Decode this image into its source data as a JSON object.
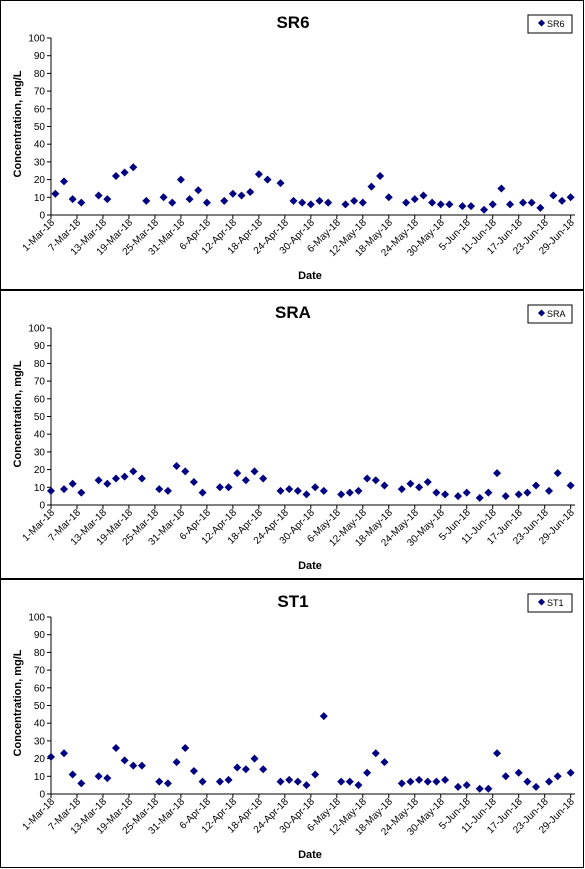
{
  "chart_data": [
    {
      "type": "scatter",
      "title": "SR6",
      "xlabel": "Date",
      "ylabel": "Concentration, mg/L",
      "ylim": [
        0,
        100
      ],
      "y_ticks": [
        "0",
        "10",
        "20",
        "30",
        "40",
        "50",
        "60",
        "70",
        "80",
        "90",
        "100"
      ],
      "x_ticks": [
        "1-Mar-18",
        "7-Mar-18",
        "13-Mar-18",
        "19-Mar-18",
        "25-Mar-18",
        "31-Mar-18",
        "6-Apr-18",
        "12-Apr-18",
        "18-Apr-18",
        "24-Apr-18",
        "30-Apr-18",
        "6-May-18",
        "12-May-18",
        "18-May-18",
        "24-May-18",
        "30-May-18",
        "5-Jun-18",
        "11-Jun-18",
        "17-Jun-18",
        "23-Jun-18",
        "29-Jun-18"
      ],
      "legend": "top-right",
      "marker_color": "#000080",
      "series": [
        {
          "name": "SR6",
          "points": [
            [
              "2018-03-02",
              12
            ],
            [
              "2018-03-04",
              19
            ],
            [
              "2018-03-06",
              9
            ],
            [
              "2018-03-08",
              7
            ],
            [
              "2018-03-12",
              11
            ],
            [
              "2018-03-14",
              9
            ],
            [
              "2018-03-16",
              22
            ],
            [
              "2018-03-18",
              24
            ],
            [
              "2018-03-20",
              27
            ],
            [
              "2018-03-23",
              8
            ],
            [
              "2018-03-27",
              10
            ],
            [
              "2018-03-29",
              7
            ],
            [
              "2018-03-31",
              20
            ],
            [
              "2018-04-02",
              9
            ],
            [
              "2018-04-04",
              14
            ],
            [
              "2018-04-06",
              7
            ],
            [
              "2018-04-10",
              8
            ],
            [
              "2018-04-12",
              12
            ],
            [
              "2018-04-14",
              11
            ],
            [
              "2018-04-16",
              13
            ],
            [
              "2018-04-18",
              23
            ],
            [
              "2018-04-20",
              20
            ],
            [
              "2018-04-23",
              18
            ],
            [
              "2018-04-26",
              8
            ],
            [
              "2018-04-28",
              7
            ],
            [
              "2018-04-30",
              6
            ],
            [
              "2018-05-02",
              8
            ],
            [
              "2018-05-04",
              7
            ],
            [
              "2018-05-08",
              6
            ],
            [
              "2018-05-10",
              8
            ],
            [
              "2018-05-12",
              7
            ],
            [
              "2018-05-14",
              16
            ],
            [
              "2018-05-16",
              22
            ],
            [
              "2018-05-18",
              10
            ],
            [
              "2018-05-22",
              7
            ],
            [
              "2018-05-24",
              9
            ],
            [
              "2018-05-26",
              11
            ],
            [
              "2018-05-28",
              7
            ],
            [
              "2018-05-30",
              6
            ],
            [
              "2018-06-01",
              6
            ],
            [
              "2018-06-04",
              5
            ],
            [
              "2018-06-06",
              5
            ],
            [
              "2018-06-09",
              3
            ],
            [
              "2018-06-11",
              6
            ],
            [
              "2018-06-13",
              15
            ],
            [
              "2018-06-15",
              6
            ],
            [
              "2018-06-18",
              7
            ],
            [
              "2018-06-20",
              7
            ],
            [
              "2018-06-22",
              4
            ],
            [
              "2018-06-25",
              11
            ],
            [
              "2018-06-27",
              8
            ],
            [
              "2018-06-29",
              10
            ]
          ]
        }
      ]
    },
    {
      "type": "scatter",
      "title": "SRA",
      "xlabel": "Date",
      "ylabel": "Concentration, mg/L",
      "ylim": [
        0,
        100
      ],
      "y_ticks": [
        "0",
        "10",
        "20",
        "30",
        "40",
        "50",
        "60",
        "70",
        "80",
        "90",
        "100"
      ],
      "x_ticks": [
        "1-Mar-18",
        "7-Mar-18",
        "13-Mar-18",
        "19-Mar-18",
        "25-Mar-18",
        "31-Mar-18",
        "6-Apr-18",
        "12-Apr-18",
        "18-Apr-18",
        "24-Apr-18",
        "30-Apr-18",
        "6-May-18",
        "12-May-18",
        "18-May-18",
        "24-May-18",
        "30-May-18",
        "5-Jun-18",
        "11-Jun-18",
        "17-Jun-18",
        "23-Jun-18",
        "29-Jun-18"
      ],
      "legend": "top-right",
      "marker_color": "#000080",
      "series": [
        {
          "name": "SRA",
          "points": [
            [
              "2018-03-01",
              8
            ],
            [
              "2018-03-04",
              9
            ],
            [
              "2018-03-06",
              12
            ],
            [
              "2018-03-08",
              7
            ],
            [
              "2018-03-12",
              14
            ],
            [
              "2018-03-14",
              12
            ],
            [
              "2018-03-16",
              15
            ],
            [
              "2018-03-18",
              16
            ],
            [
              "2018-03-20",
              19
            ],
            [
              "2018-03-22",
              15
            ],
            [
              "2018-03-26",
              9
            ],
            [
              "2018-03-28",
              8
            ],
            [
              "2018-03-30",
              22
            ],
            [
              "2018-04-01",
              19
            ],
            [
              "2018-04-03",
              13
            ],
            [
              "2018-04-05",
              7
            ],
            [
              "2018-04-09",
              10
            ],
            [
              "2018-04-11",
              10
            ],
            [
              "2018-04-13",
              18
            ],
            [
              "2018-04-15",
              14
            ],
            [
              "2018-04-17",
              19
            ],
            [
              "2018-04-19",
              15
            ],
            [
              "2018-04-23",
              8
            ],
            [
              "2018-04-25",
              9
            ],
            [
              "2018-04-27",
              8
            ],
            [
              "2018-04-29",
              6
            ],
            [
              "2018-05-01",
              10
            ],
            [
              "2018-05-03",
              8
            ],
            [
              "2018-05-07",
              6
            ],
            [
              "2018-05-09",
              7
            ],
            [
              "2018-05-11",
              8
            ],
            [
              "2018-05-13",
              15
            ],
            [
              "2018-05-15",
              14
            ],
            [
              "2018-05-17",
              11
            ],
            [
              "2018-05-21",
              9
            ],
            [
              "2018-05-23",
              12
            ],
            [
              "2018-05-25",
              10
            ],
            [
              "2018-05-27",
              13
            ],
            [
              "2018-05-29",
              7
            ],
            [
              "2018-05-31",
              6
            ],
            [
              "2018-06-03",
              5
            ],
            [
              "2018-06-05",
              7
            ],
            [
              "2018-06-08",
              4
            ],
            [
              "2018-06-10",
              7
            ],
            [
              "2018-06-12",
              18
            ],
            [
              "2018-06-14",
              5
            ],
            [
              "2018-06-17",
              6
            ],
            [
              "2018-06-19",
              7
            ],
            [
              "2018-06-21",
              11
            ],
            [
              "2018-06-24",
              8
            ],
            [
              "2018-06-26",
              18
            ],
            [
              "2018-06-29",
              11
            ]
          ]
        }
      ]
    },
    {
      "type": "scatter",
      "title": "ST1",
      "xlabel": "Date",
      "ylabel": "Concentration, mg/L",
      "ylim": [
        0,
        100
      ],
      "y_ticks": [
        "0",
        "10",
        "20",
        "30",
        "40",
        "50",
        "60",
        "70",
        "80",
        "90",
        "100"
      ],
      "x_ticks": [
        "1-Mar-18",
        "7-Mar-18",
        "13-Mar-18",
        "19-Mar-18",
        "25-Mar-18",
        "31-Mar-18",
        "6-Apr-18",
        "12-Apr-18",
        "18-Apr-18",
        "24-Apr-18",
        "30-Apr-18",
        "6-May-18",
        "12-May-18",
        "18-May-18",
        "24-May-18",
        "30-May-18",
        "5-Jun-18",
        "11-Jun-18",
        "17-Jun-18",
        "23-Jun-18",
        "29-Jun-18"
      ],
      "legend": "top-right",
      "marker_color": "#000080",
      "series": [
        {
          "name": "ST1",
          "points": [
            [
              "2018-03-01",
              21
            ],
            [
              "2018-03-04",
              23
            ],
            [
              "2018-03-06",
              11
            ],
            [
              "2018-03-08",
              6
            ],
            [
              "2018-03-12",
              10
            ],
            [
              "2018-03-14",
              9
            ],
            [
              "2018-03-16",
              26
            ],
            [
              "2018-03-18",
              19
            ],
            [
              "2018-03-20",
              16
            ],
            [
              "2018-03-22",
              16
            ],
            [
              "2018-03-26",
              7
            ],
            [
              "2018-03-28",
              6
            ],
            [
              "2018-03-30",
              18
            ],
            [
              "2018-04-01",
              26
            ],
            [
              "2018-04-03",
              13
            ],
            [
              "2018-04-05",
              7
            ],
            [
              "2018-04-09",
              7
            ],
            [
              "2018-04-11",
              8
            ],
            [
              "2018-04-13",
              15
            ],
            [
              "2018-04-15",
              14
            ],
            [
              "2018-04-17",
              20
            ],
            [
              "2018-04-19",
              14
            ],
            [
              "2018-04-23",
              7
            ],
            [
              "2018-04-25",
              8
            ],
            [
              "2018-04-27",
              7
            ],
            [
              "2018-04-29",
              5
            ],
            [
              "2018-05-01",
              11
            ],
            [
              "2018-05-03",
              44
            ],
            [
              "2018-05-07",
              7
            ],
            [
              "2018-05-09",
              7
            ],
            [
              "2018-05-11",
              5
            ],
            [
              "2018-05-13",
              12
            ],
            [
              "2018-05-15",
              23
            ],
            [
              "2018-05-17",
              18
            ],
            [
              "2018-05-21",
              6
            ],
            [
              "2018-05-23",
              7
            ],
            [
              "2018-05-25",
              8
            ],
            [
              "2018-05-27",
              7
            ],
            [
              "2018-05-29",
              7
            ],
            [
              "2018-05-31",
              8
            ],
            [
              "2018-06-03",
              4
            ],
            [
              "2018-06-05",
              5
            ],
            [
              "2018-06-08",
              3
            ],
            [
              "2018-06-10",
              3
            ],
            [
              "2018-06-12",
              23
            ],
            [
              "2018-06-14",
              10
            ],
            [
              "2018-06-17",
              12
            ],
            [
              "2018-06-19",
              7
            ],
            [
              "2018-06-21",
              4
            ],
            [
              "2018-06-24",
              7
            ],
            [
              "2018-06-26",
              10
            ],
            [
              "2018-06-29",
              12
            ]
          ]
        }
      ]
    }
  ]
}
